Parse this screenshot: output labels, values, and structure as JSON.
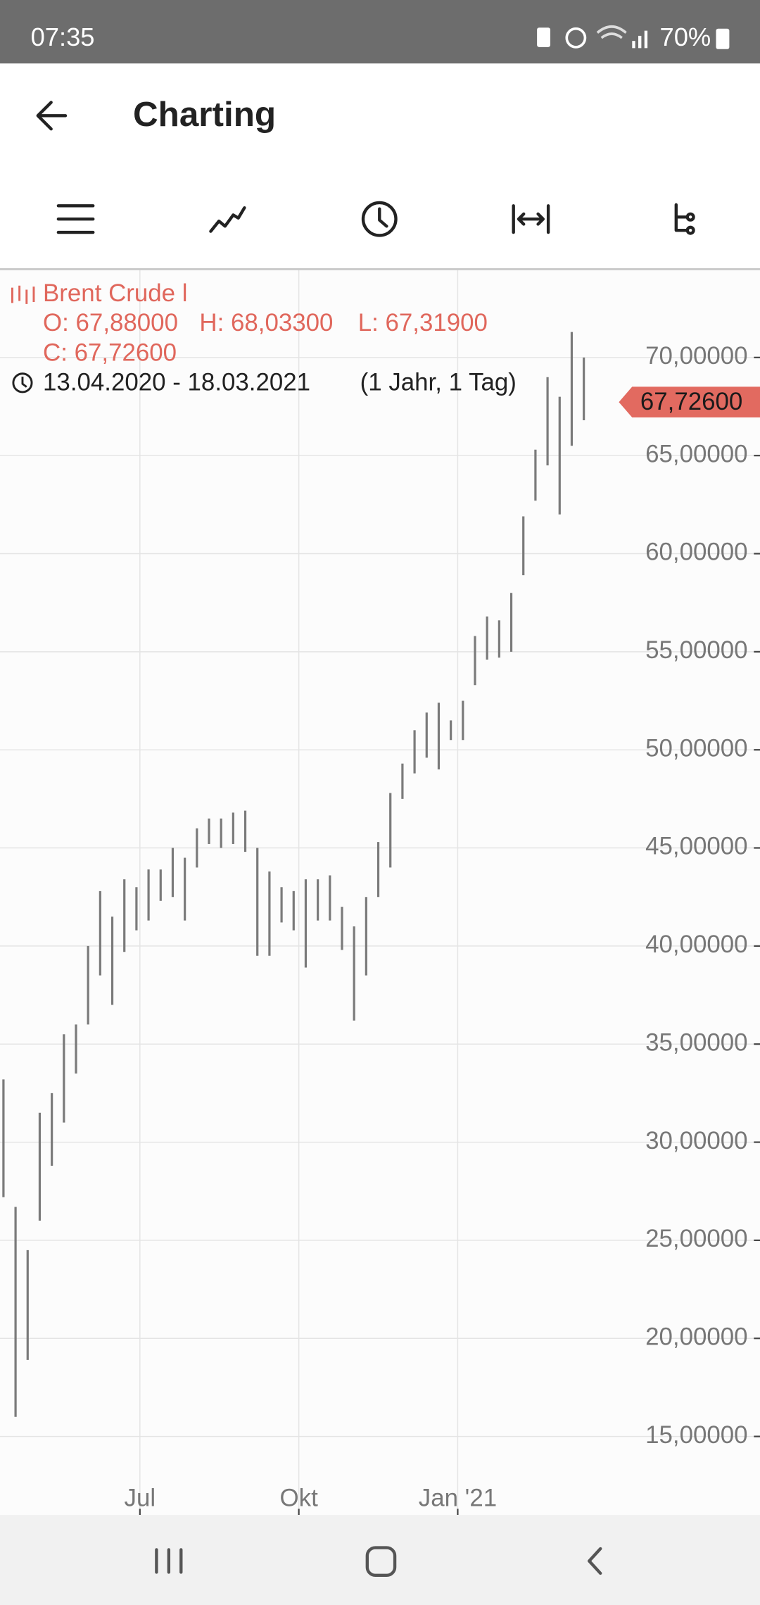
{
  "status_bar": {
    "time": "07:35",
    "battery": "70%"
  },
  "app_bar": {
    "title": "Charting"
  },
  "chart_data": {
    "type": "hilo",
    "instrument": "Brent Crude l",
    "quote": [
      "O: 67,88000",
      "H: 68,03300",
      "L: 67,31900",
      "C: 67,72600"
    ],
    "period": "13.04.2020 - 18.03.2021",
    "period_length": "(1 Jahr, 1 Tag)",
    "last_price": {
      "value": 67.726,
      "label": "67,72600"
    },
    "color": "#7a7a7a",
    "x": [
      "2020-04-13",
      "2020-04-20",
      "2020-04-27",
      "2020-05-04",
      "2020-05-11",
      "2020-05-18",
      "2020-05-25",
      "2020-06-01",
      "2020-06-08",
      "2020-06-15",
      "2020-06-22",
      "2020-06-29",
      "2020-07-06",
      "2020-07-13",
      "2020-07-20",
      "2020-07-27",
      "2020-08-03",
      "2020-08-10",
      "2020-08-17",
      "2020-08-24",
      "2020-08-31",
      "2020-09-07",
      "2020-09-14",
      "2020-09-21",
      "2020-09-28",
      "2020-10-05",
      "2020-10-12",
      "2020-10-19",
      "2020-10-26",
      "2020-11-02",
      "2020-11-09",
      "2020-11-16",
      "2020-11-23",
      "2020-11-30",
      "2020-12-07",
      "2020-12-14",
      "2020-12-21",
      "2020-12-28",
      "2021-01-04",
      "2021-01-11",
      "2021-01-18",
      "2021-01-25",
      "2021-02-01",
      "2021-02-08",
      "2021-02-15",
      "2021-02-22",
      "2021-03-01",
      "2021-03-08",
      "2021-03-15"
    ],
    "low": [
      27.2,
      16,
      18.9,
      26,
      28.8,
      31,
      33.5,
      36,
      38.5,
      37,
      39.7,
      40.8,
      41.3,
      42.3,
      42.5,
      41.3,
      44,
      45.2,
      45,
      45.2,
      44.8,
      39.5,
      39.5,
      41.2,
      40.8,
      38.9,
      41.3,
      41.3,
      39.8,
      36.2,
      38.5,
      42.5,
      44,
      47.5,
      48.8,
      49.6,
      49,
      50.5,
      50.5,
      53.3,
      54.6,
      54.7,
      55,
      58.9,
      62.7,
      64.5,
      62,
      65.5,
      66.8
    ],
    "high": [
      33.2,
      26.7,
      24.5,
      31.5,
      32.5,
      35.5,
      36,
      40,
      42.8,
      41.5,
      43.4,
      43,
      43.9,
      43.9,
      45,
      44.5,
      46,
      46.5,
      46.5,
      46.8,
      46.9,
      45,
      43.8,
      43,
      42.8,
      43.4,
      43.4,
      43.6,
      42,
      41,
      42.5,
      45.3,
      47.8,
      49.3,
      51,
      51.9,
      52.4,
      51.5,
      52.5,
      55.8,
      56.8,
      56.6,
      58,
      61.9,
      65.3,
      69,
      68,
      71.3,
      70
    ],
    "xlim": [
      "2020-04-11",
      "2021-06-25"
    ],
    "xticks": [
      {
        "value": "2020-07-01",
        "label": "Jul"
      },
      {
        "value": "2020-10-01",
        "label": "Okt"
      },
      {
        "value": "2021-01-01",
        "label": "Jan '21"
      }
    ],
    "ylim": [
      11,
      74.5
    ],
    "yticks": [
      {
        "value": 15,
        "label": "15,00000"
      },
      {
        "value": 20,
        "label": "20,00000"
      },
      {
        "value": 25,
        "label": "25,00000"
      },
      {
        "value": 30,
        "label": "30,00000"
      },
      {
        "value": 35,
        "label": "35,00000"
      },
      {
        "value": 40,
        "label": "40,00000"
      },
      {
        "value": 45,
        "label": "45,00000"
      },
      {
        "value": 50,
        "label": "50,00000"
      },
      {
        "value": 55,
        "label": "55,00000"
      },
      {
        "value": 60,
        "label": "60,00000"
      },
      {
        "value": 65,
        "label": "65,00000"
      },
      {
        "value": 70,
        "label": "70,00000"
      }
    ],
    "grid": true
  }
}
